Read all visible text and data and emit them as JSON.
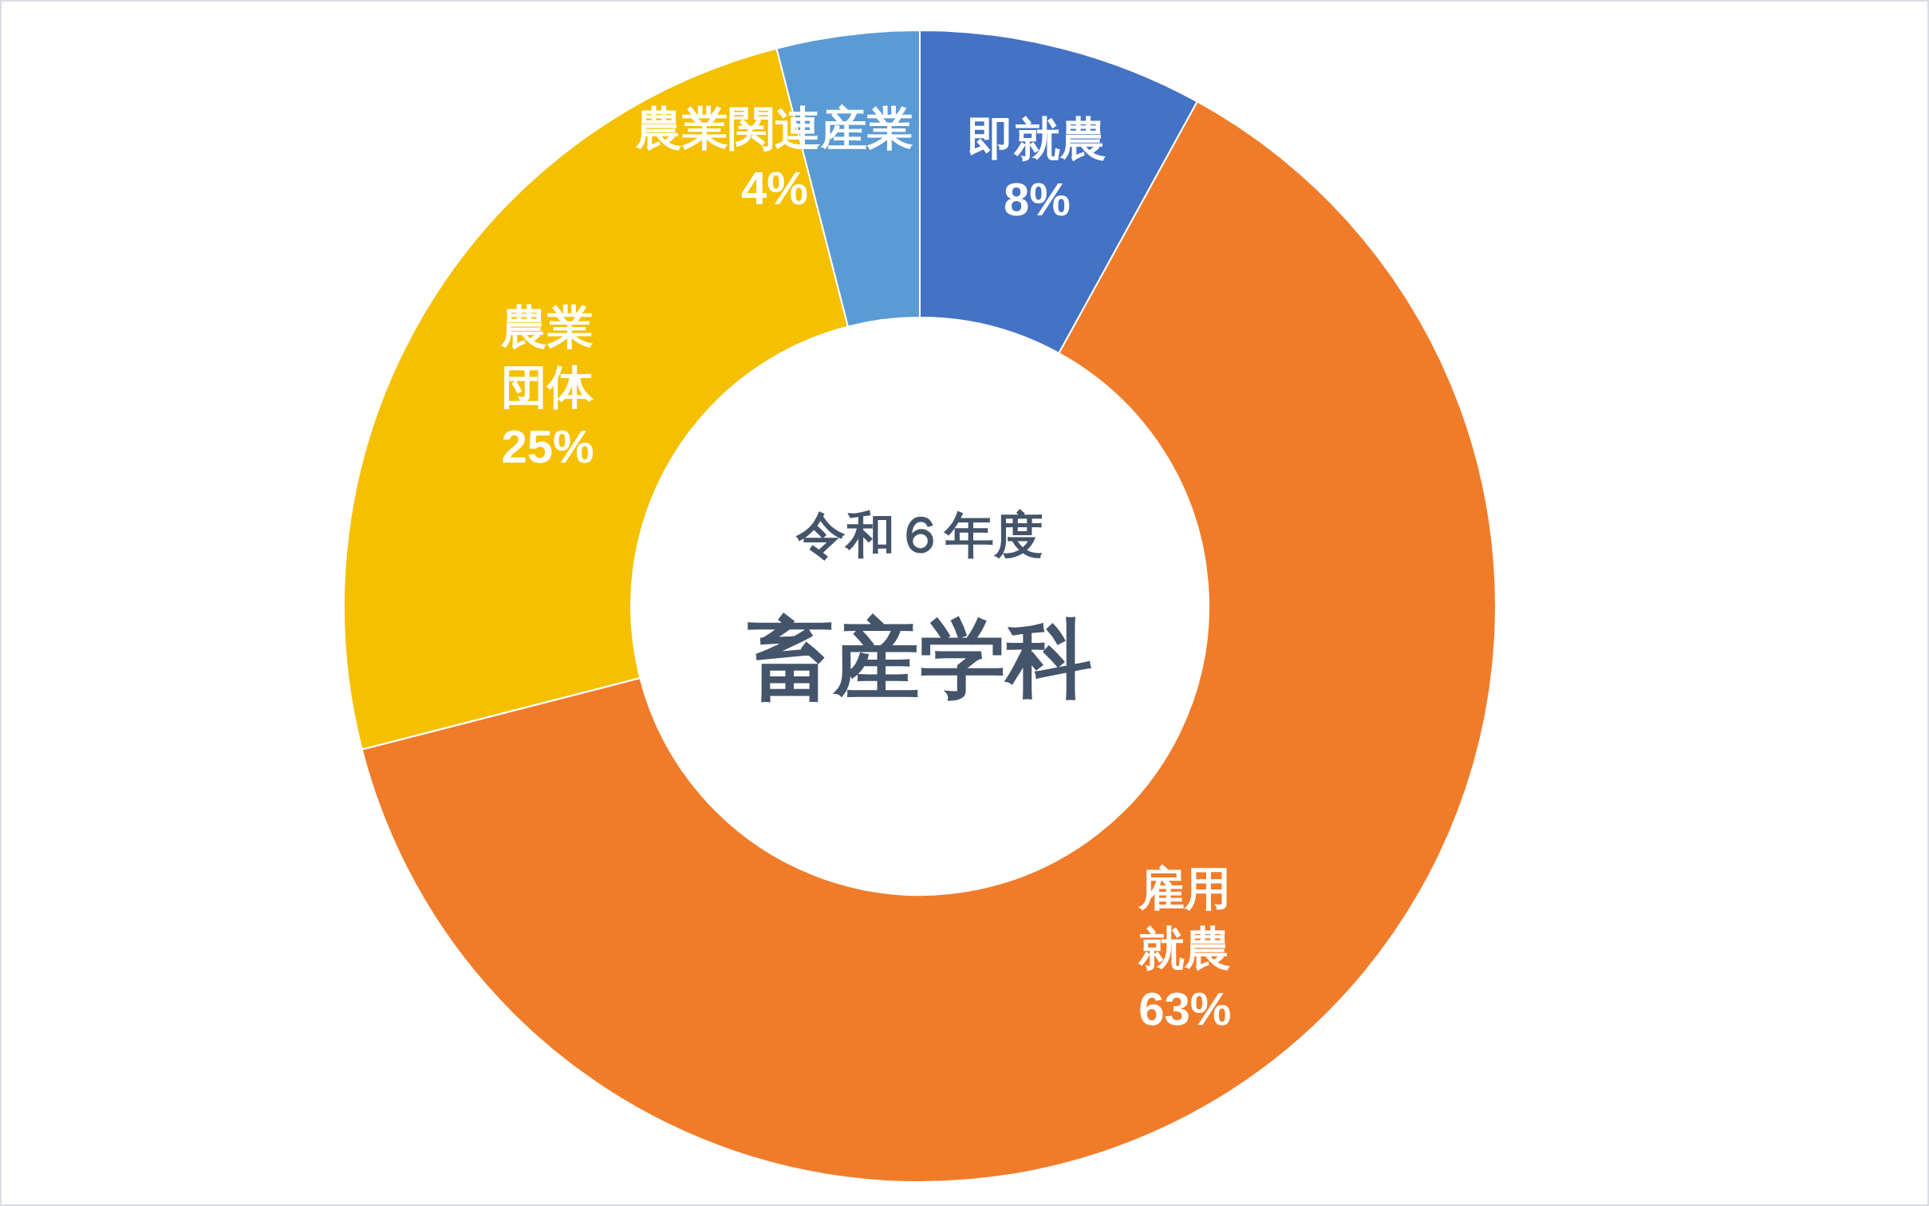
{
  "chart_data": {
    "type": "donut",
    "title": "畜産学科",
    "subtitle": "令和６年度",
    "categories": [
      "即就農",
      "雇用就農",
      "農業団体",
      "農業関連産業"
    ],
    "values": [
      8,
      63,
      25,
      4
    ],
    "value_labels": [
      "8%",
      "63%",
      "25%",
      "4%"
    ],
    "colors": [
      "#4472c4",
      "#f07c2a",
      "#f5c000",
      "#5b9bd5"
    ]
  }
}
